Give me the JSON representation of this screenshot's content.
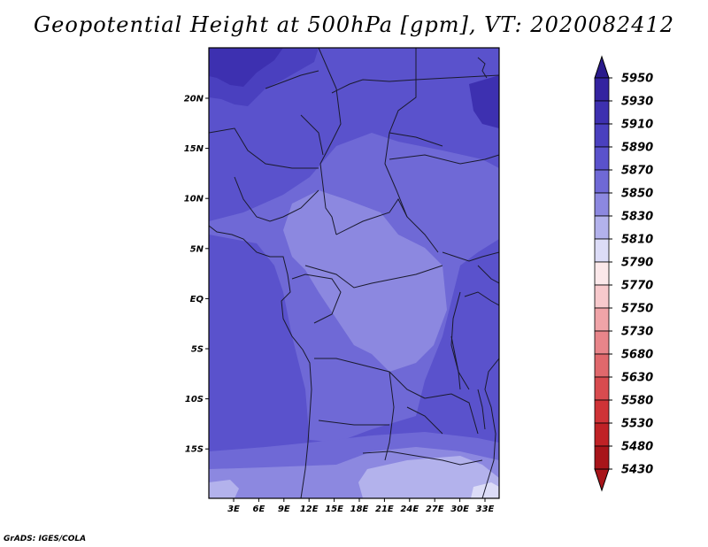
{
  "title": "Geopotential Height at 500hPa [gpm], VT: 2020082412",
  "credit": "GrADS: IGES/COLA",
  "colors": {
    "frame": "#000000",
    "border": "#1a1a2e"
  },
  "map_axes": {
    "lon_labels": [
      "3E",
      "6E",
      "9E",
      "12E",
      "15E",
      "18E",
      "21E",
      "24E",
      "27E",
      "30E",
      "33E"
    ],
    "lat_labels": [
      "20N",
      "15N",
      "10N",
      "5N",
      "EQ",
      "5S",
      "10S",
      "15S"
    ]
  },
  "legend": {
    "levels": [
      {
        "label": "5950",
        "color": "#2a1a8c"
      },
      {
        "label": "5930",
        "color": "#3423a0"
      },
      {
        "label": "5910",
        "color": "#3d30b0"
      },
      {
        "label": "5890",
        "color": "#4a40bf"
      },
      {
        "label": "5870",
        "color": "#5a52cc"
      },
      {
        "label": "5850",
        "color": "#6f69d6"
      },
      {
        "label": "5830",
        "color": "#8c88e0"
      },
      {
        "label": "5810",
        "color": "#b3b2ec"
      },
      {
        "label": "5790",
        "color": "#dcdcf7"
      },
      {
        "label": "5770",
        "color": "#fbe8ea"
      },
      {
        "label": "5750",
        "color": "#f7c9cc"
      },
      {
        "label": "5730",
        "color": "#f0a4a8"
      },
      {
        "label": "5680",
        "color": "#e8858a"
      },
      {
        "label": "5630",
        "color": "#e0686c"
      },
      {
        "label": "5580",
        "color": "#d84b4f"
      },
      {
        "label": "5530",
        "color": "#cf3337"
      },
      {
        "label": "5480",
        "color": "#c02226"
      },
      {
        "label": "5430",
        "color": "#a8151a"
      }
    ]
  }
}
